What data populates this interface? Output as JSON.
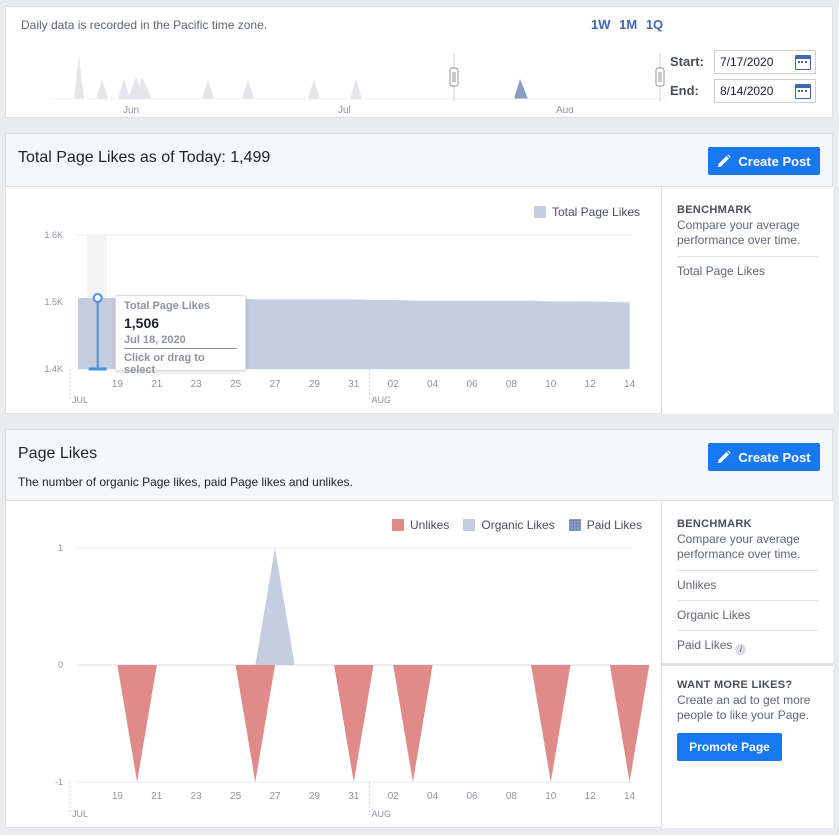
{
  "range": {
    "note": "Daily data is recorded in the Pacific time zone.",
    "buttons": [
      "1W",
      "1M",
      "1Q"
    ],
    "start_label": "Start:",
    "end_label": "End:",
    "start_value": "7/17/2020",
    "end_value": "8/14/2020",
    "month_labels": [
      "Jun",
      "Jul",
      "Aug"
    ]
  },
  "total_likes": {
    "title": "Total Page Likes as of Today: 1,499",
    "create_post_label": "Create Post",
    "legend": "Total Page Likes",
    "benchmark_title": "BENCHMARK",
    "benchmark_desc": "Compare your average performance over time.",
    "benchmark_items": [
      "Total Page Likes"
    ],
    "tooltip": {
      "title": "Total Page Likes",
      "value": "1,506",
      "date": "Jul 18, 2020",
      "hint": "Click or drag to select"
    }
  },
  "page_likes": {
    "title": "Page Likes",
    "description": "The number of organic Page likes, paid Page likes and unlikes.",
    "create_post_label": "Create Post",
    "legend": [
      "Unlikes",
      "Organic Likes",
      "Paid Likes"
    ],
    "benchmark_title": "BENCHMARK",
    "benchmark_desc": "Compare your average performance over time.",
    "benchmark_items": [
      "Unlikes",
      "Organic Likes",
      "Paid Likes"
    ],
    "want_title": "WANT MORE LIKES?",
    "want_desc": "Create an ad to get more people to like your Page.",
    "promote_label": "Promote Page"
  },
  "colors": {
    "accent": "#1877f2",
    "link": "#4267b2",
    "total_fill": "#c5cde0",
    "unlikes": "#e08a8a",
    "organic": "#c5cde0",
    "paid": "#8b9dc3"
  },
  "chart_data": [
    {
      "type": "area",
      "title": "Total Page Likes as of Today: 1,499",
      "x_ticks": [
        "19",
        "21",
        "23",
        "25",
        "27",
        "29",
        "31",
        "02",
        "04",
        "06",
        "08",
        "10",
        "12",
        "14"
      ],
      "x_month_labels": [
        "JUL",
        "AUG"
      ],
      "y_ticks": [
        "1.4K",
        "1.5K",
        "1.6K"
      ],
      "ylim": [
        1400,
        1600
      ],
      "series": [
        {
          "name": "Total Page Likes",
          "x": [
            "2020-07-17",
            "2020-07-18",
            "2020-07-19",
            "2020-07-20",
            "2020-07-21",
            "2020-07-22",
            "2020-07-23",
            "2020-07-24",
            "2020-07-25",
            "2020-07-26",
            "2020-07-27",
            "2020-07-28",
            "2020-07-29",
            "2020-07-30",
            "2020-07-31",
            "2020-08-01",
            "2020-08-02",
            "2020-08-03",
            "2020-08-04",
            "2020-08-05",
            "2020-08-06",
            "2020-08-07",
            "2020-08-08",
            "2020-08-09",
            "2020-08-10",
            "2020-08-11",
            "2020-08-12",
            "2020-08-13",
            "2020-08-14"
          ],
          "values": [
            1506,
            1506,
            1506,
            1505,
            1505,
            1505,
            1505,
            1505,
            1505,
            1504,
            1504,
            1504,
            1504,
            1504,
            1504,
            1503,
            1503,
            1502,
            1502,
            1502,
            1502,
            1502,
            1502,
            1502,
            1501,
            1501,
            1501,
            1500,
            1499
          ]
        }
      ],
      "legend": "top-right",
      "grid": true
    },
    {
      "type": "area",
      "title": "Page Likes",
      "x_ticks": [
        "19",
        "21",
        "23",
        "25",
        "27",
        "29",
        "31",
        "02",
        "04",
        "06",
        "08",
        "10",
        "12",
        "14"
      ],
      "x_month_labels": [
        "JUL",
        "AUG"
      ],
      "y_ticks": [
        "-1",
        "0",
        "1"
      ],
      "ylim": [
        -1,
        1
      ],
      "series": [
        {
          "name": "Unlikes",
          "x": [
            "2020-07-20",
            "2020-07-26",
            "2020-07-31",
            "2020-08-03",
            "2020-08-10",
            "2020-08-14"
          ],
          "values": [
            -1,
            -1,
            -1,
            -1,
            -1,
            -1
          ]
        },
        {
          "name": "Organic Likes",
          "x": [
            "2020-07-27"
          ],
          "values": [
            1
          ]
        },
        {
          "name": "Paid Likes",
          "x": [],
          "values": []
        }
      ],
      "legend": "top-right",
      "grid": true
    }
  ]
}
